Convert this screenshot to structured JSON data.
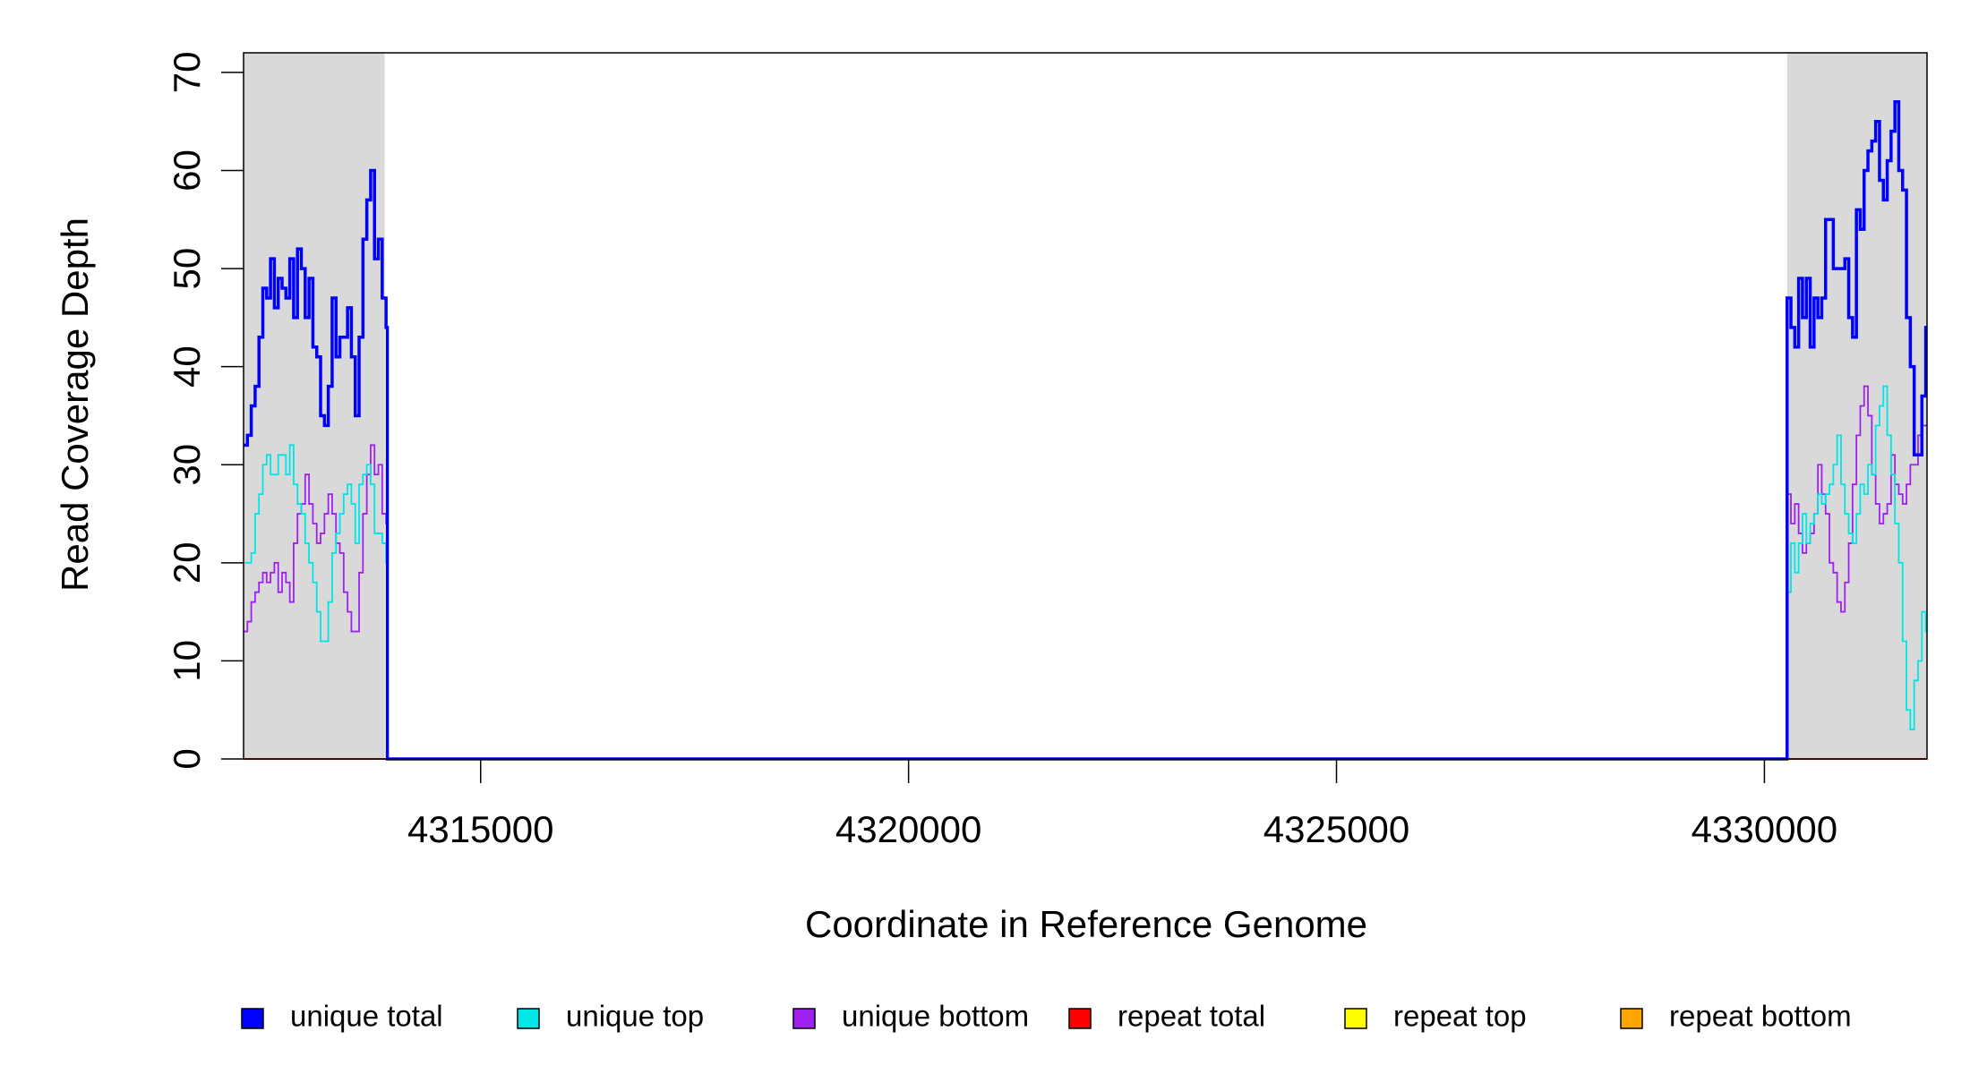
{
  "chart_data": {
    "type": "line",
    "step": true,
    "xlabel": "Coordinate in Reference Genome",
    "ylabel": "Read Coverage Depth",
    "xlim": [
      4312230,
      4331900
    ],
    "ylim": [
      0,
      72
    ],
    "xticks": [
      4315000,
      4320000,
      4325000,
      4330000
    ],
    "yticks": [
      0,
      10,
      20,
      30,
      40,
      50,
      60,
      70
    ],
    "legend": "bottom",
    "shaded_regions": [
      [
        4312230,
        4313879
      ],
      [
        4330265,
        4331900
      ]
    ],
    "shade_color": "#d9d9d9",
    "x": [
      4312230,
      4312275,
      4312320,
      4312365,
      4312410,
      4312455,
      4312500,
      4312545,
      4312590,
      4312635,
      4312680,
      4312725,
      4312770,
      4312815,
      4312860,
      4312905,
      4312950,
      4312995,
      4313040,
      4313085,
      4313130,
      4313175,
      4313220,
      4313265,
      4313310,
      4313355,
      4313400,
      4313445,
      4313490,
      4313535,
      4313580,
      4313625,
      4313670,
      4313715,
      4313760,
      4313805,
      4313850,
      4313895,
      4313910,
      4330265,
      4330310,
      4330355,
      4330400,
      4330445,
      4330490,
      4330535,
      4330580,
      4330625,
      4330670,
      4330715,
      4330760,
      4330805,
      4330850,
      4330895,
      4330940,
      4330985,
      4331030,
      4331075,
      4331120,
      4331165,
      4331210,
      4331255,
      4331300,
      4331345,
      4331390,
      4331435,
      4331480,
      4331525,
      4331570,
      4331615,
      4331660,
      4331705,
      4331750,
      4331795,
      4331840,
      4331885
    ],
    "series": [
      {
        "name": "unique total",
        "color": "#0000ff",
        "values": [
          32,
          33,
          36,
          38,
          43,
          48,
          47,
          51,
          46,
          49,
          48,
          47,
          51,
          45,
          52,
          50,
          45,
          49,
          42,
          41,
          35,
          34,
          38,
          47,
          41,
          43,
          43,
          46,
          41,
          35,
          43,
          53,
          57,
          60,
          51,
          53,
          47,
          44,
          0,
          47,
          44,
          42,
          49,
          45,
          49,
          42,
          47,
          45,
          47,
          55,
          55,
          50,
          50,
          50,
          51,
          45,
          43,
          56,
          54,
          60,
          62,
          63,
          65,
          59,
          57,
          61,
          64,
          67,
          60,
          58,
          45,
          40,
          31,
          31,
          37,
          44
        ]
      },
      {
        "name": "unique top",
        "color": "#00e5e5",
        "values": [
          20,
          20,
          21,
          25,
          27,
          30,
          31,
          29,
          29,
          31,
          31,
          29,
          32,
          28,
          26,
          25,
          22,
          20,
          18,
          15,
          12,
          12,
          16,
          21,
          23,
          25,
          27,
          28,
          26,
          22,
          28,
          29,
          30,
          28,
          23,
          23,
          22,
          20,
          0,
          17,
          22,
          19,
          22,
          25,
          22,
          24,
          25,
          27,
          26,
          27,
          28,
          30,
          33,
          28,
          25,
          23,
          22,
          25,
          28,
          27,
          30,
          29,
          34,
          36,
          38,
          33,
          29,
          24,
          20,
          12,
          5,
          3,
          8,
          10,
          15,
          13
        ]
      },
      {
        "name": "unique bottom",
        "color": "#a020f0",
        "values": [
          13,
          14,
          16,
          17,
          18,
          19,
          18,
          19,
          20,
          17,
          19,
          18,
          16,
          22,
          25,
          26,
          29,
          26,
          24,
          22,
          23,
          25,
          27,
          25,
          22,
          21,
          17,
          15,
          13,
          13,
          19,
          25,
          29,
          32,
          29,
          30,
          25,
          24,
          0,
          27,
          24,
          26,
          23,
          21,
          22,
          23,
          25,
          30,
          27,
          25,
          20,
          19,
          16,
          15,
          18,
          22,
          28,
          33,
          36,
          38,
          35,
          29,
          26,
          24,
          25,
          26,
          31,
          28,
          27,
          26,
          28,
          30,
          30,
          33,
          34,
          34
        ]
      },
      {
        "name": "repeat total",
        "color": "#ff0000",
        "values": [
          0,
          0,
          0,
          0,
          0,
          0,
          0,
          0,
          0,
          0,
          0,
          0,
          0,
          0,
          0,
          0,
          0,
          0,
          0,
          0,
          0,
          0,
          0,
          0,
          0,
          0,
          0,
          0,
          0,
          0,
          0,
          0,
          0,
          0,
          0,
          0,
          0,
          0,
          0,
          0,
          0,
          0,
          0,
          0,
          0,
          0,
          0,
          0,
          0,
          0,
          0,
          0,
          0,
          0,
          0,
          0,
          0,
          0,
          0,
          0,
          0,
          0,
          0,
          0,
          0,
          0,
          0,
          0,
          0,
          0,
          0,
          0,
          0,
          0,
          0,
          0
        ]
      },
      {
        "name": "repeat top",
        "color": "#ffff00",
        "values": [
          0,
          0,
          0,
          0,
          0,
          0,
          0,
          0,
          0,
          0,
          0,
          0,
          0,
          0,
          0,
          0,
          0,
          0,
          0,
          0,
          0,
          0,
          0,
          0,
          0,
          0,
          0,
          0,
          0,
          0,
          0,
          0,
          0,
          0,
          0,
          0,
          0,
          0,
          0,
          0,
          0,
          0,
          0,
          0,
          0,
          0,
          0,
          0,
          0,
          0,
          0,
          0,
          0,
          0,
          0,
          0,
          0,
          0,
          0,
          0,
          0,
          0,
          0,
          0,
          0,
          0,
          0,
          0,
          0,
          0,
          0,
          0,
          0,
          0,
          0,
          0
        ]
      },
      {
        "name": "repeat bottom",
        "color": "#ffa500",
        "values": [
          0,
          0,
          0,
          0,
          0,
          0,
          0,
          0,
          0,
          0,
          0,
          0,
          0,
          0,
          0,
          0,
          0,
          0,
          0,
          0,
          0,
          0,
          0,
          0,
          0,
          0,
          0,
          0,
          0,
          0,
          0,
          0,
          0,
          0,
          0,
          0,
          0,
          0,
          0,
          0,
          0,
          0,
          0,
          0,
          0,
          0,
          0,
          0,
          0,
          0,
          0,
          0,
          0,
          0,
          0,
          0,
          0,
          0,
          0,
          0,
          0,
          0,
          0,
          0,
          0,
          0,
          0,
          0,
          0,
          0,
          0,
          0,
          0,
          0,
          0,
          0
        ]
      }
    ]
  }
}
